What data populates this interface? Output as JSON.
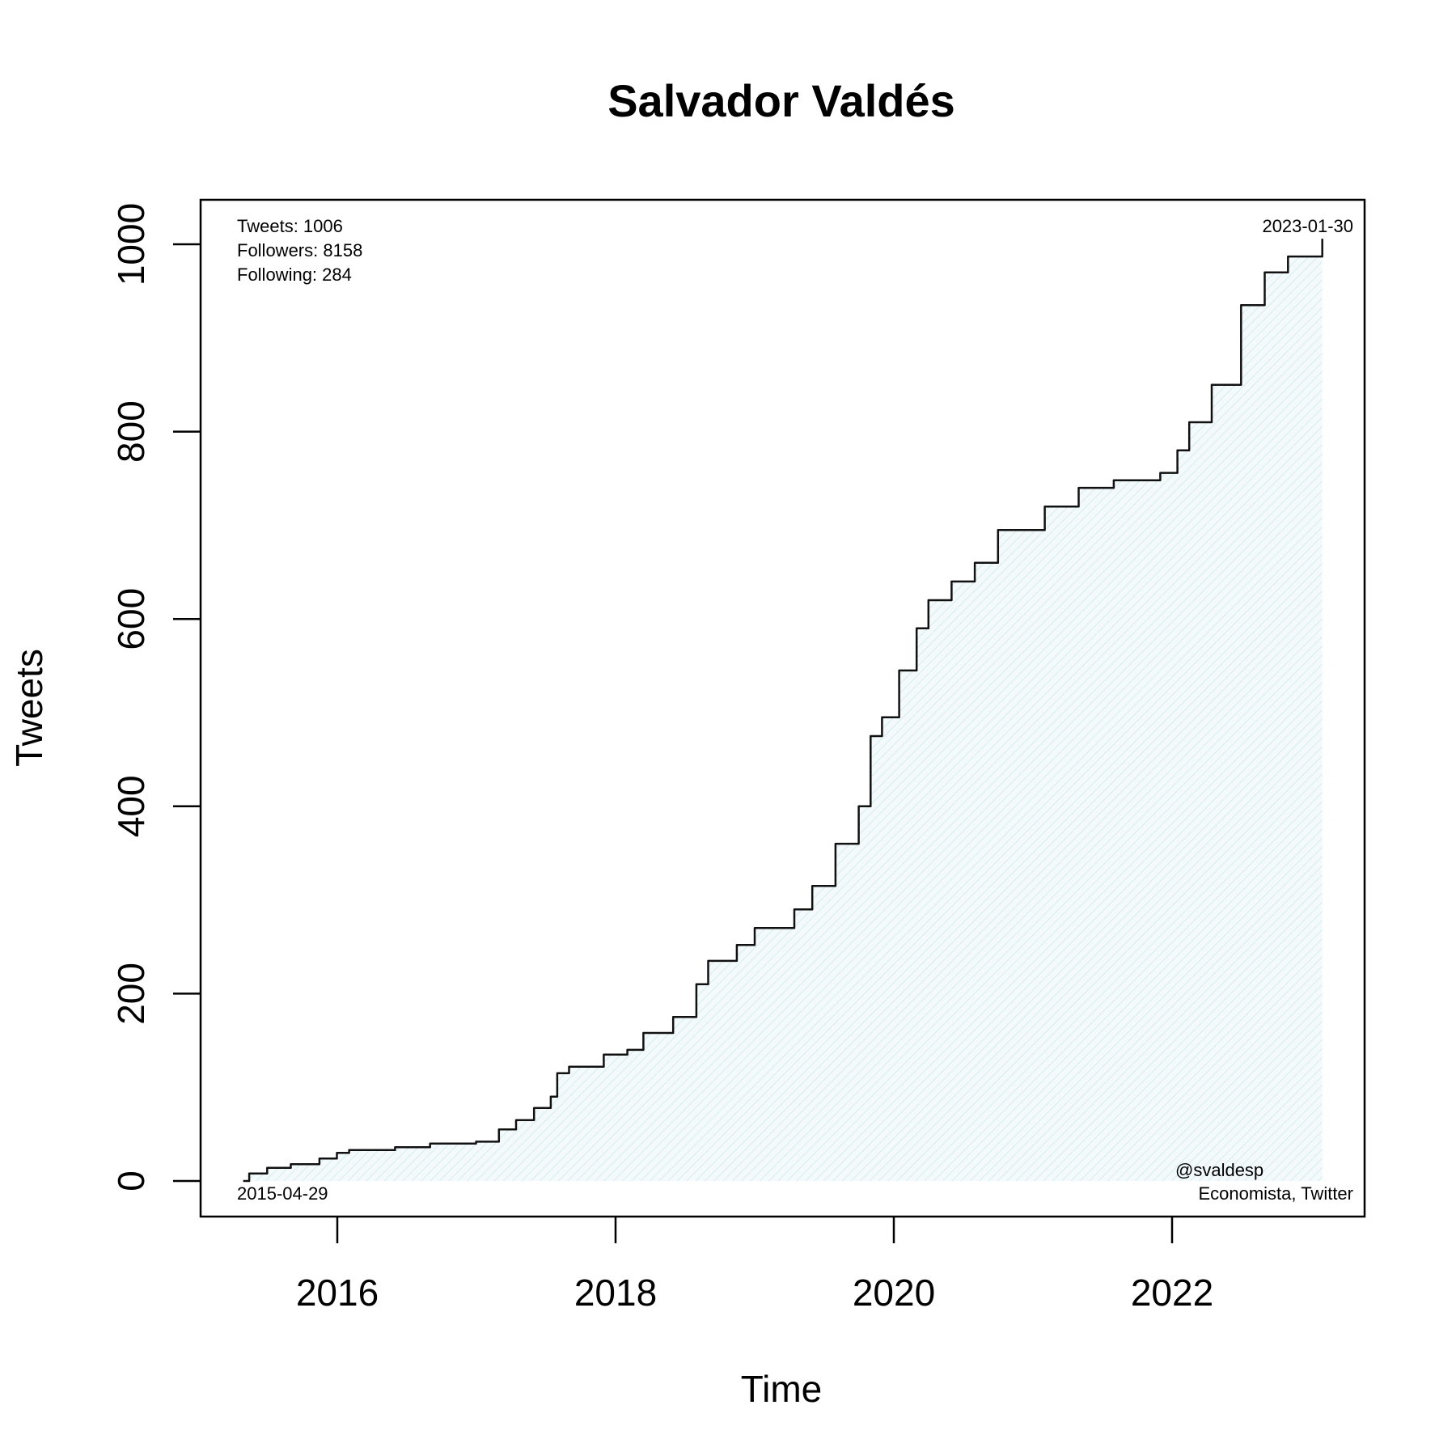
{
  "chart_data": {
    "type": "area",
    "title": "Salvador Valdés",
    "xlabel": "Time",
    "ylabel": "Tweets",
    "x_ticks": [
      "2016",
      "2018",
      "2020",
      "2022"
    ],
    "y_ticks": [
      "0",
      "200",
      "400",
      "600",
      "800",
      "1000"
    ],
    "ylim": [
      0,
      1000
    ],
    "grid": false,
    "legend": "none",
    "colors": {
      "line": "#111111",
      "fill": "#eaf6f8",
      "hatch": "#d4ecf0"
    },
    "annotations": {
      "tweets": "Tweets: 1006",
      "followers": "Followers: 8158",
      "following": "Following: 284",
      "start_date": "2015-04-29",
      "end_date": "2023-01-30",
      "handle": "@svaldesp",
      "bio": "Economista, Twitter"
    },
    "series": [
      {
        "x": [
          "2015-04-29",
          "2015-05-15",
          "2015-07-01",
          "2015-09-01",
          "2015-11-15",
          "2015-12-31",
          "2016-02-01",
          "2016-06-01",
          "2016-09-01",
          "2016-12-31",
          "2017-03-01",
          "2017-04-15",
          "2017-06-01",
          "2017-07-15",
          "2017-08-01",
          "2017-09-01",
          "2017-12-01",
          "2018-02-01",
          "2018-03-15",
          "2018-06-01",
          "2018-08-01",
          "2018-09-01",
          "2018-11-15",
          "2019-01-01",
          "2019-04-15",
          "2019-06-01",
          "2019-08-01",
          "2019-10-01",
          "2019-11-01",
          "2019-12-01",
          "2020-01-15",
          "2020-03-01",
          "2020-04-01",
          "2020-06-01",
          "2020-08-01",
          "2020-10-01",
          "2021-02-01",
          "2021-05-01",
          "2021-08-01",
          "2021-12-01",
          "2022-01-15",
          "2022-02-15",
          "2022-04-15",
          "2022-07-01",
          "2022-09-01",
          "2022-11-01",
          "2023-01-30"
        ],
        "y": [
          0,
          8,
          14,
          18,
          24,
          30,
          33,
          36,
          40,
          42,
          55,
          65,
          78,
          90,
          115,
          122,
          135,
          140,
          158,
          175,
          210,
          235,
          252,
          270,
          290,
          315,
          360,
          400,
          475,
          495,
          545,
          590,
          620,
          640,
          660,
          695,
          720,
          740,
          748,
          756,
          780,
          810,
          850,
          935,
          970,
          987,
          1006
        ]
      }
    ]
  }
}
